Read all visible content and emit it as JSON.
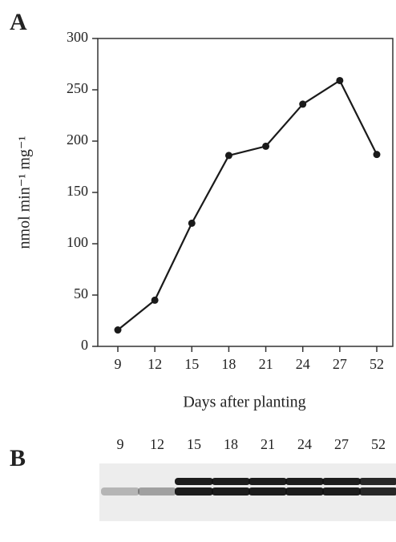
{
  "chart_data": {
    "type": "line",
    "panel_label": "A",
    "x_label": "Days after planting",
    "y_label": "nmol min⁻¹ mg⁻¹",
    "categories": [
      "9",
      "12",
      "15",
      "18",
      "21",
      "24",
      "27",
      "52"
    ],
    "series": [
      {
        "color": "#1a1a1a",
        "values": [
          16,
          45,
          120,
          186,
          195,
          236,
          259,
          187
        ]
      }
    ],
    "ylim": [
      0,
      300
    ],
    "yticks": [
      0,
      50,
      100,
      150,
      200,
      250,
      300
    ],
    "grid": false
  },
  "panel_b": {
    "label": "B",
    "lanes": [
      "9",
      "12",
      "15",
      "18",
      "21",
      "24",
      "27",
      "52"
    ]
  }
}
